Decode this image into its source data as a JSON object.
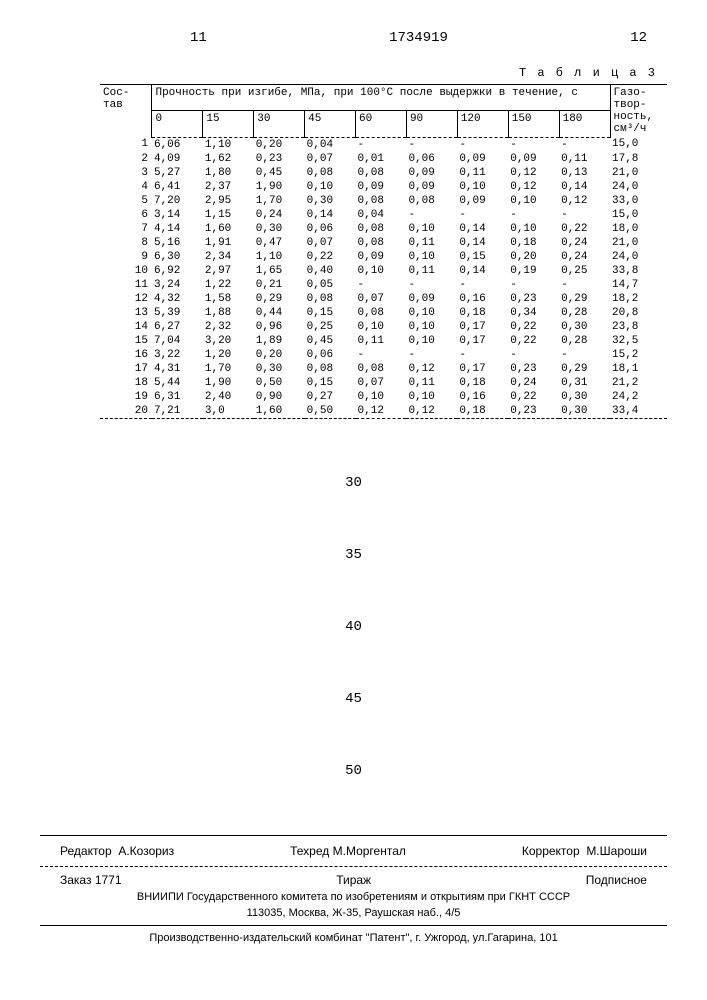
{
  "header": {
    "left_page": "11",
    "doc_number": "1734919",
    "right_page": "12"
  },
  "table": {
    "label": "Т а б л и ц а 3",
    "col_left_label": "Сос-\nтав",
    "main_header": "Прочность при изгибе, МПа, при 100°С после выдержки в течение, с",
    "time_cols": [
      "0",
      "15",
      "30",
      "45",
      "60",
      "90",
      "120",
      "150",
      "180"
    ],
    "gas_label": "Газо-\nтвор-\nность,\nсм³/ч",
    "rows": [
      {
        "n": "1",
        "v": [
          "6,06",
          "1,10",
          "0,20",
          "0,04",
          "-",
          "-",
          "-",
          "-",
          "-"
        ],
        "g": "15,0"
      },
      {
        "n": "2",
        "v": [
          "4,09",
          "1,62",
          "0,23",
          "0,07",
          "0,01",
          "0,06",
          "0,09",
          "0,09",
          "0,11"
        ],
        "g": "17,8"
      },
      {
        "n": "3",
        "v": [
          "5,27",
          "1,80",
          "0,45",
          "0,08",
          "0,08",
          "0,09",
          "0,11",
          "0,12",
          "0,13"
        ],
        "g": "21,0"
      },
      {
        "n": "4",
        "v": [
          "6,41",
          "2,37",
          "1,90",
          "0,10",
          "0,09",
          "0,09",
          "0,10",
          "0,12",
          "0,14"
        ],
        "g": "24,0"
      },
      {
        "n": "5",
        "v": [
          "7,20",
          "2,95",
          "1,70",
          "0,30",
          "0,08",
          "0,08",
          "0,09",
          "0,10",
          "0,12"
        ],
        "g": "33,0"
      },
      {
        "n": "6",
        "v": [
          "3,14",
          "1,15",
          "0,24",
          "0,14",
          "0,04",
          "-",
          "-",
          "-",
          "-"
        ],
        "g": "15,0"
      },
      {
        "n": "7",
        "v": [
          "4,14",
          "1,60",
          "0,30",
          "0,06",
          "0,08",
          "0,10",
          "0,14",
          "0,10",
          "0,22"
        ],
        "g": "18,0"
      },
      {
        "n": "8",
        "v": [
          "5,16",
          "1,91",
          "0,47",
          "0,07",
          "0,08",
          "0,11",
          "0,14",
          "0,18",
          "0,24"
        ],
        "g": "21,0"
      },
      {
        "n": "9",
        "v": [
          "6,30",
          "2,34",
          "1,10",
          "0,22",
          "0,09",
          "0,10",
          "0,15",
          "0,20",
          "0,24"
        ],
        "g": "24,0"
      },
      {
        "n": "10",
        "v": [
          "6,92",
          "2,97",
          "1,65",
          "0,40",
          "0,10",
          "0,11",
          "0,14",
          "0,19",
          "0,25"
        ],
        "g": "33,8"
      },
      {
        "n": "11",
        "v": [
          "3,24",
          "1,22",
          "0,21",
          "0,05",
          "-",
          "-",
          "-",
          "-",
          "-"
        ],
        "g": "14,7"
      },
      {
        "n": "12",
        "v": [
          "4,32",
          "1,58",
          "0,29",
          "0,08",
          "0,07",
          "0,09",
          "0,16",
          "0,23",
          "0,29"
        ],
        "g": "18,2"
      },
      {
        "n": "13",
        "v": [
          "5,39",
          "1,88",
          "0,44",
          "0,15",
          "0,08",
          "0,10",
          "0,18",
          "0,34",
          "0,28"
        ],
        "g": "20,8"
      },
      {
        "n": "14",
        "v": [
          "6,27",
          "2,32",
          "0,96",
          "0,25",
          "0,10",
          "0,10",
          "0,17",
          "0,22",
          "0,30"
        ],
        "g": "23,8"
      },
      {
        "n": "15",
        "v": [
          "7,04",
          "3,20",
          "1,89",
          "0,45",
          "0,11",
          "0,10",
          "0,17",
          "0,22",
          "0,28"
        ],
        "g": "32,5"
      },
      {
        "n": "16",
        "v": [
          "3,22",
          "1,20",
          "0,20",
          "0,06",
          "-",
          "-",
          "-",
          "-",
          "-"
        ],
        "g": "15,2"
      },
      {
        "n": "17",
        "v": [
          "4,31",
          "1,70",
          "0,30",
          "0,08",
          "0,08",
          "0,12",
          "0,17",
          "0,23",
          "0,29"
        ],
        "g": "18,1"
      },
      {
        "n": "18",
        "v": [
          "5,44",
          "1,90",
          "0,50",
          "0,15",
          "0,07",
          "0,11",
          "0,18",
          "0,24",
          "0,31"
        ],
        "g": "21,2"
      },
      {
        "n": "19",
        "v": [
          "6,31",
          "2,40",
          "0,90",
          "0,27",
          "0,10",
          "0,10",
          "0,16",
          "0,22",
          "0,30"
        ],
        "g": "24,2"
      },
      {
        "n": "20",
        "v": [
          "7,21",
          "3,0",
          "1,60",
          "0,50",
          "0,12",
          "0,12",
          "0,18",
          "0,23",
          "0,30"
        ],
        "g": "33,4"
      }
    ]
  },
  "line_numbers": [
    "30",
    "35",
    "40",
    "45",
    "50"
  ],
  "footer": {
    "editor_lbl": "Редактор",
    "editor": "А.Козориз",
    "tech_lbl": "Техред",
    "tech": "М.Моргентал",
    "corr_lbl": "Корректор",
    "corr": "М.Шароши",
    "order_lbl": "Заказ",
    "order": "1771",
    "tirazh_lbl": "Тираж",
    "sub_lbl": "Подписное",
    "org1": "ВНИИПИ Государственного комитета по изобретениям и открытиям при ГКНТ СССР",
    "org2": "113035, Москва, Ж-35, Раушская наб., 4/5",
    "org3": "Производственно-издательский комбинат \"Патент\", г. Ужгород, ул.Гагарина, 101"
  }
}
